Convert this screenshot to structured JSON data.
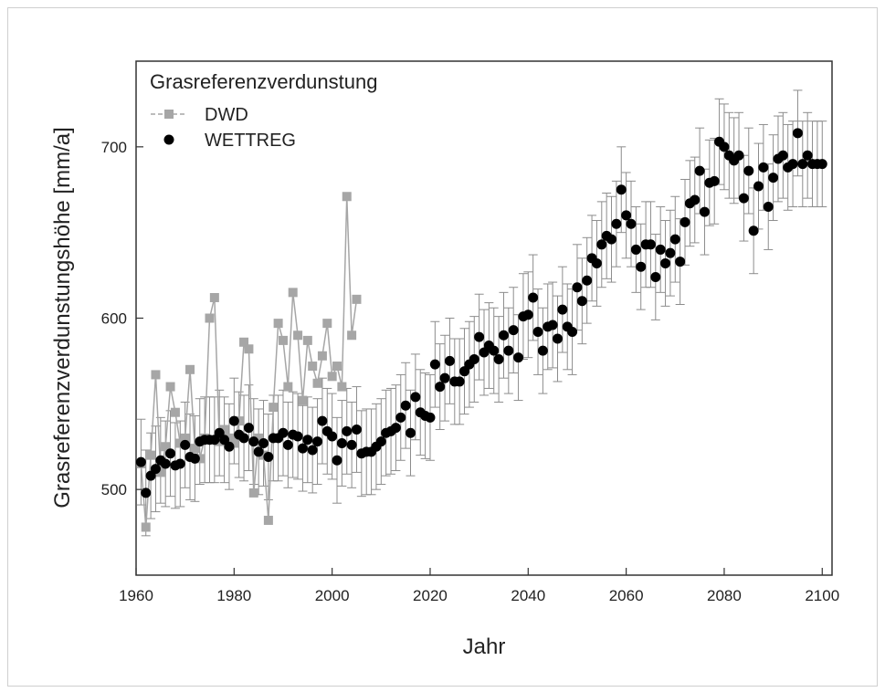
{
  "chart_data": {
    "type": "scatter",
    "title": "",
    "xlabel": "Jahr",
    "ylabel": "Grasreferenzverdunstungshöhe [mm/a]",
    "xlim": [
      1960,
      2102
    ],
    "ylim": [
      450,
      750
    ],
    "x_ticks": [
      1960,
      1980,
      2000,
      2020,
      2040,
      2060,
      2080,
      2100
    ],
    "y_ticks": [
      500,
      600,
      700
    ],
    "grid": false,
    "legend": {
      "title": "Grasreferenzverdunstung",
      "placement": "top-left"
    },
    "series": [
      {
        "name": "DWD",
        "marker": "square",
        "line": true,
        "color": "#a6a6a6",
        "x": [
          1961,
          1962,
          1963,
          1964,
          1965,
          1966,
          1967,
          1968,
          1969,
          1970,
          1971,
          1972,
          1973,
          1974,
          1975,
          1976,
          1977,
          1978,
          1979,
          1980,
          1981,
          1982,
          1983,
          1984,
          1985,
          1986,
          1987,
          1988,
          1989,
          1990,
          1991,
          1992,
          1993,
          1994,
          1995,
          1996,
          1997,
          1998,
          1999,
          2000,
          2001,
          2002,
          2003,
          2004,
          2005
        ],
        "y": [
          515,
          478,
          520,
          567,
          510,
          525,
          560,
          545,
          527,
          530,
          570,
          524,
          518,
          530,
          600,
          612,
          528,
          535,
          530,
          527,
          540,
          586,
          582,
          498,
          530,
          520,
          482,
          548,
          597,
          587,
          560,
          615,
          590,
          552,
          587,
          572,
          562,
          578,
          597,
          566,
          572,
          560,
          671,
          590,
          611
        ]
      },
      {
        "name": "WETTREG",
        "marker": "circle",
        "line": false,
        "color": "#000000",
        "error_bars": "±~25",
        "x": [
          1961,
          1962,
          1963,
          1964,
          1965,
          1966,
          1967,
          1968,
          1969,
          1970,
          1971,
          1972,
          1973,
          1974,
          1975,
          1976,
          1977,
          1978,
          1979,
          1980,
          1981,
          1982,
          1983,
          1984,
          1985,
          1986,
          1987,
          1988,
          1989,
          1990,
          1991,
          1992,
          1993,
          1994,
          1995,
          1996,
          1997,
          1998,
          1999,
          2000,
          2001,
          2002,
          2003,
          2004,
          2005,
          2006,
          2007,
          2008,
          2009,
          2010,
          2011,
          2012,
          2013,
          2014,
          2015,
          2016,
          2017,
          2018,
          2019,
          2020,
          2021,
          2022,
          2023,
          2024,
          2025,
          2026,
          2027,
          2028,
          2029,
          2030,
          2031,
          2032,
          2033,
          2034,
          2035,
          2036,
          2037,
          2038,
          2039,
          2040,
          2041,
          2042,
          2043,
          2044,
          2045,
          2046,
          2047,
          2048,
          2049,
          2050,
          2051,
          2052,
          2053,
          2054,
          2055,
          2056,
          2057,
          2058,
          2059,
          2060,
          2061,
          2062,
          2063,
          2064,
          2065,
          2066,
          2067,
          2068,
          2069,
          2070,
          2071,
          2072,
          2073,
          2074,
          2075,
          2076,
          2077,
          2078,
          2079,
          2080,
          2081,
          2082,
          2083,
          2084,
          2085,
          2086,
          2087,
          2088,
          2089,
          2090,
          2091,
          2092,
          2093,
          2094,
          2095,
          2096,
          2097,
          2098,
          2099,
          2100
        ],
        "y": [
          516,
          498,
          508,
          512,
          517,
          515,
          521,
          514,
          515,
          526,
          519,
          518,
          528,
          529,
          529,
          529,
          533,
          529,
          525,
          540,
          532,
          530,
          536,
          528,
          522,
          527,
          519,
          530,
          530,
          533,
          526,
          532,
          531,
          524,
          529,
          523,
          528,
          540,
          534,
          531,
          517,
          527,
          534,
          526,
          535,
          521,
          522,
          522,
          525,
          528,
          533,
          534,
          536,
          542,
          549,
          533,
          554,
          545,
          543,
          542,
          573,
          560,
          565,
          575,
          563,
          563,
          569,
          573,
          576,
          589,
          580,
          584,
          581,
          576,
          590,
          581,
          593,
          577,
          601,
          602,
          612,
          592,
          581,
          595,
          596,
          588,
          605,
          595,
          592,
          618,
          610,
          622,
          635,
          632,
          643,
          648,
          646,
          655,
          675,
          660,
          655,
          640,
          630,
          643,
          643,
          624,
          640,
          632,
          638,
          646,
          633,
          656,
          667,
          669,
          686,
          662,
          679,
          680,
          703,
          700,
          695,
          692,
          695,
          670,
          686,
          651,
          677,
          688,
          665,
          682,
          693,
          695,
          688,
          690,
          708,
          690,
          695,
          690,
          690,
          690
        ]
      }
    ]
  }
}
